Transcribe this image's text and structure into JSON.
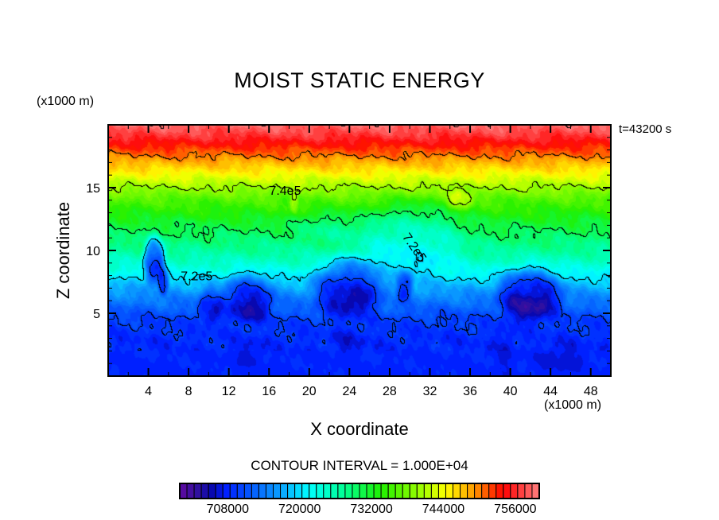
{
  "chart_data": {
    "type": "heatmap",
    "title": "MOIST STATIC ENERGY",
    "xlabel": "X coordinate",
    "ylabel": "Z coordinate",
    "x_unit": "(x1000 m)",
    "y_unit": "(x1000 m)",
    "time_label": "t=43200 s",
    "contour_interval_label": "CONTOUR INTERVAL = 1.000E+04",
    "contour_interval": 10000,
    "xlim": [
      0,
      50
    ],
    "ylim": [
      0,
      20
    ],
    "x_ticks": [
      4,
      8,
      12,
      16,
      20,
      24,
      28,
      32,
      36,
      40,
      44,
      48
    ],
    "y_ticks": [
      5,
      10,
      15
    ],
    "colorbar": {
      "min": 700000,
      "max": 760000,
      "levels": 50,
      "tick_values": [
        708000,
        720000,
        732000,
        744000,
        756000
      ],
      "tick_labels": [
        "708000",
        "720000",
        "732000",
        "744000",
        "756000"
      ]
    },
    "contour_labels": [
      {
        "text": "7.4e5",
        "x": 17.6,
        "z": 14.7
      },
      {
        "text": "7.2e5",
        "x": 8.8,
        "z": 7.9
      },
      {
        "text": "7.2e5",
        "x": 30.4,
        "z": 10.2
      }
    ],
    "profile": {
      "z": [
        0,
        3,
        4.5,
        6,
        7.5,
        8.5,
        10,
        12,
        14,
        15,
        16,
        17.5,
        19,
        20
      ],
      "value": [
        708000,
        708500,
        710000,
        714000,
        719000,
        723000,
        727000,
        731000,
        736000,
        740000,
        744000,
        750000,
        756000,
        759000
      ]
    },
    "anomalies": [
      {
        "x": 4.6,
        "z": 9.2,
        "rx": 1.0,
        "rz": 1.8,
        "delta": -14000
      },
      {
        "x": 5.5,
        "z": 7.5,
        "rx": 0.5,
        "rz": 1.0,
        "delta": -8000
      },
      {
        "x": 14,
        "z": 6.3,
        "rx": 2.4,
        "rz": 1.8,
        "delta": -8000
      },
      {
        "x": 10.2,
        "z": 5.6,
        "rx": 1.3,
        "rz": 1.4,
        "delta": -5000
      },
      {
        "x": 24,
        "z": 7.2,
        "rx": 3.2,
        "rz": 2.2,
        "delta": -10000
      },
      {
        "x": 29.5,
        "z": 7.2,
        "rx": 0.8,
        "rz": 1.2,
        "delta": -8000
      },
      {
        "x": 42,
        "z": 6.6,
        "rx": 3.0,
        "rz": 2.0,
        "delta": -10000
      },
      {
        "x": 30,
        "z": 11,
        "rx": 5,
        "rz": 2.8,
        "delta": -5000
      },
      {
        "x": 22,
        "z": 12,
        "rx": 3,
        "rz": 1.2,
        "delta": -2500
      },
      {
        "x": 35,
        "z": 14,
        "rx": 1.3,
        "rz": 0.8,
        "delta": 5000
      },
      {
        "x": 18.5,
        "z": 13.7,
        "rx": 0.4,
        "rz": 0.8,
        "delta": 4500
      },
      {
        "x": 14,
        "z": 1.8,
        "rx": 1.3,
        "rz": 1.0,
        "delta": -1500
      },
      {
        "x": 24,
        "z": 2.8,
        "rx": 1.5,
        "rz": 1.2,
        "delta": -1500
      },
      {
        "x": 39.5,
        "z": 2.5,
        "rx": 0.9,
        "rz": 2.2,
        "delta": -1500
      },
      {
        "x": 45,
        "z": 1.5,
        "rx": 2.5,
        "rz": 1.2,
        "delta": -1500
      }
    ]
  }
}
